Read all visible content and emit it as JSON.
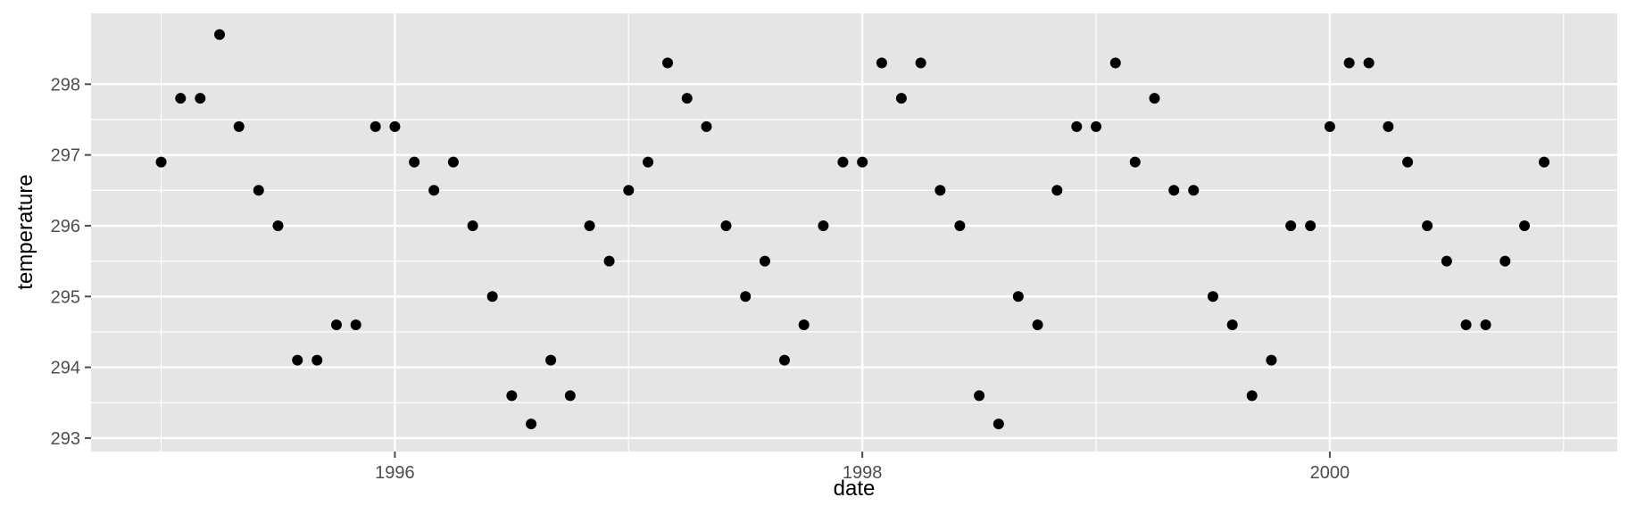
{
  "chart_data": {
    "type": "scatter",
    "xlabel": "date",
    "ylabel": "temperature",
    "x_tick_labels": [
      "1996",
      "1998",
      "2000"
    ],
    "x_tick_values": [
      1996,
      1998,
      2000
    ],
    "y_tick_labels": [
      "293",
      "294",
      "295",
      "296",
      "297",
      "298"
    ],
    "y_tick_values": [
      293,
      294,
      295,
      296,
      297,
      298
    ],
    "xlim": [
      1994.7,
      2001.23
    ],
    "ylim": [
      292.81,
      299.0
    ],
    "grid": true,
    "colors": {
      "panel": "#e5e5e5",
      "grid": "#ffffff",
      "point": "#000000",
      "tick": "#4d4d4d"
    },
    "x": [
      1995.0,
      1995.083,
      1995.167,
      1995.25,
      1995.333,
      1995.417,
      1995.5,
      1995.583,
      1995.667,
      1995.75,
      1995.833,
      1995.917,
      1996.0,
      1996.083,
      1996.167,
      1996.25,
      1996.333,
      1996.417,
      1996.5,
      1996.583,
      1996.667,
      1996.75,
      1996.833,
      1996.917,
      1997.0,
      1997.083,
      1997.167,
      1997.25,
      1997.333,
      1997.417,
      1997.5,
      1997.583,
      1997.667,
      1997.75,
      1997.833,
      1997.917,
      1998.0,
      1998.083,
      1998.167,
      1998.25,
      1998.333,
      1998.417,
      1998.5,
      1998.583,
      1998.667,
      1998.75,
      1998.833,
      1998.917,
      1999.0,
      1999.083,
      1999.167,
      1999.25,
      1999.333,
      1999.417,
      1999.5,
      1999.583,
      1999.667,
      1999.75,
      1999.833,
      1999.917,
      2000.0,
      2000.083,
      2000.167,
      2000.25,
      2000.333,
      2000.417,
      2000.5,
      2000.583,
      2000.667,
      2000.75,
      2000.833,
      2000.917
    ],
    "y": [
      296.9,
      297.8,
      297.8,
      298.7,
      297.4,
      296.5,
      296.0,
      294.1,
      294.1,
      294.6,
      294.6,
      297.4,
      297.4,
      296.9,
      296.5,
      296.9,
      296.0,
      295.0,
      293.6,
      293.2,
      294.1,
      293.6,
      296.0,
      295.5,
      296.5,
      296.9,
      298.3,
      297.8,
      297.4,
      296.0,
      295.0,
      295.5,
      294.1,
      294.6,
      296.0,
      296.9,
      296.9,
      298.3,
      297.8,
      298.3,
      296.5,
      296.0,
      293.6,
      293.2,
      295.0,
      294.6,
      296.5,
      297.4,
      297.4,
      298.3,
      296.9,
      297.8,
      296.5,
      296.5,
      295.0,
      294.6,
      293.6,
      294.1,
      296.0,
      296.0,
      297.4,
      298.3,
      298.3,
      297.4,
      296.9,
      296.0,
      295.5,
      294.6,
      294.6,
      295.5,
      296.0,
      296.9
    ]
  }
}
